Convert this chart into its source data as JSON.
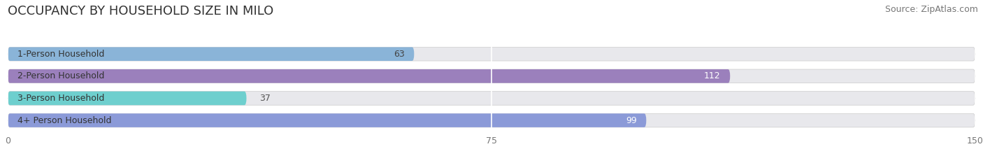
{
  "title": "OCCUPANCY BY HOUSEHOLD SIZE IN MILO",
  "source": "Source: ZipAtlas.com",
  "categories": [
    "1-Person Household",
    "2-Person Household",
    "3-Person Household",
    "4+ Person Household"
  ],
  "values": [
    63,
    112,
    37,
    99
  ],
  "bar_colors": [
    "#8ab4d8",
    "#9b80bc",
    "#6ecfce",
    "#8b9ad8"
  ],
  "bar_text_colors": [
    "#444444",
    "#ffffff",
    "#444444",
    "#ffffff"
  ],
  "xlim": [
    0,
    150
  ],
  "xticks": [
    0,
    75,
    150
  ],
  "background_color": "#ffffff",
  "bar_bg_color": "#e8e8ec",
  "title_fontsize": 13,
  "source_fontsize": 9,
  "label_fontsize": 9,
  "value_fontsize": 9,
  "bar_height": 0.62
}
